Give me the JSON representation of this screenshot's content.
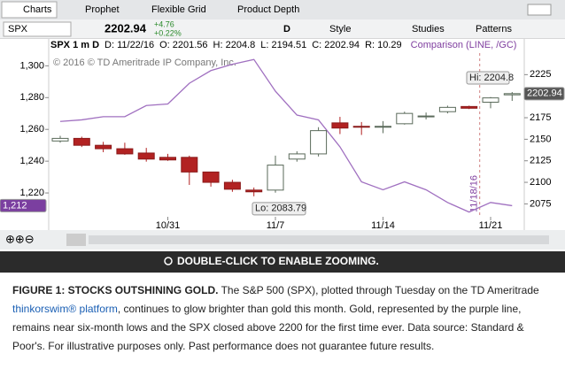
{
  "tabs": [
    "Charts",
    "Prophet",
    "Flexible Grid",
    "Product Depth"
  ],
  "symbol": "SPX",
  "last": "2202.94",
  "change": "+4.76",
  "change_pct": "+0.22%",
  "aggregation": "D",
  "toolbar": [
    "Style",
    "Studies",
    "Patterns"
  ],
  "chart": {
    "type": "candlestick",
    "header": [
      "SPX 1 m D",
      "D: 11/22/16",
      "O: 2201.56",
      "H: 2204.8",
      "L: 2194.51",
      "C: 2202.94",
      "R: 10.29"
    ],
    "comparison": "Comparison (LINE, /GC)",
    "copyright": "© 2016 © TD Ameritrade IP Company, Inc.",
    "categories": [
      null,
      null,
      null,
      null,
      null,
      "10/31",
      null,
      null,
      null,
      null,
      "11/7",
      null,
      null,
      null,
      null,
      "11/14",
      null,
      null,
      null,
      null,
      "11/21",
      null
    ],
    "series": [
      {
        "name": "SPX",
        "color": "#b22222",
        "open": [
          2148,
          2151,
          2143,
          2139,
          2134,
          2129,
          2129,
          2112,
          2100,
          2091,
          2091,
          2127,
          2133,
          2169,
          2165,
          2164,
          2168,
          2177,
          2182,
          2188,
          2193,
          2201.56
        ],
        "high": [
          2154,
          2153,
          2147,
          2146,
          2140,
          2133,
          2131,
          2112,
          2103,
          2094,
          2131,
          2136,
          2164,
          2176,
          2170,
          2171,
          2182,
          2181,
          2189,
          2189,
          2199,
          2204.8
        ],
        "low": [
          2146,
          2141,
          2135,
          2132,
          2124,
          2125,
          2097,
          2095,
          2089,
          2083.79,
          2088,
          2124,
          2130,
          2156,
          2155,
          2157,
          2167,
          2173,
          2180,
          2185,
          2186,
          2194.51
        ],
        "close": [
          2151,
          2143,
          2139,
          2133,
          2127,
          2126,
          2112,
          2100,
          2092,
          2089,
          2120,
          2133,
          2160,
          2163,
          2164,
          2165,
          2180,
          2177,
          2187,
          2186,
          2198,
          2202.94
        ]
      },
      {
        "name": "/GC",
        "color": "#a070c0",
        "axis": "y2",
        "values": [
          1265,
          1266,
          1268,
          1268,
          1275,
          1276,
          1289,
          1297,
          1301,
          1304,
          1284,
          1269,
          1266,
          1249,
          1227,
          1222,
          1227,
          1222,
          1214,
          1208,
          1214,
          1212
        ]
      }
    ],
    "ylim": [
      2060,
      2250
    ],
    "yticks": [
      2075,
      2100,
      2125,
      2150,
      2175,
      2200,
      2225
    ],
    "y2lim": [
      1205,
      1308
    ],
    "y2ticks": [
      {
        "value": 1220,
        "label": "1,220"
      },
      {
        "value": 1240,
        "label": "1,240"
      },
      {
        "value": 1260,
        "label": "1,260"
      },
      {
        "value": 1280,
        "label": "1,280"
      },
      {
        "value": 1300,
        "label": "1,300"
      }
    ],
    "last_label": "2202.94",
    "gold_label": "1,212",
    "hi_label": "Hi: 2204.8",
    "lo_label": "Lo: 2083.79",
    "marker_label": "11/18/16"
  },
  "banner": "DOUBLE-CLICK TO ENABLE ZOOMING.",
  "caption": {
    "title": "FIGURE 1: STOCKS OUTSHINING GOLD.",
    "text1": " The S&P 500 (SPX), plotted through Tuesday on the TD Ameritrade ",
    "link": "thinkorswim® platform",
    "text2": ",  continues to glow brighter than gold this month. Gold, represented by the purple line, remains near six-month lows and the SPX closed above 2200 for the first time ever. Data source: Standard & Poor's. For illustrative purposes only. Past performance does not guarantee future results."
  }
}
